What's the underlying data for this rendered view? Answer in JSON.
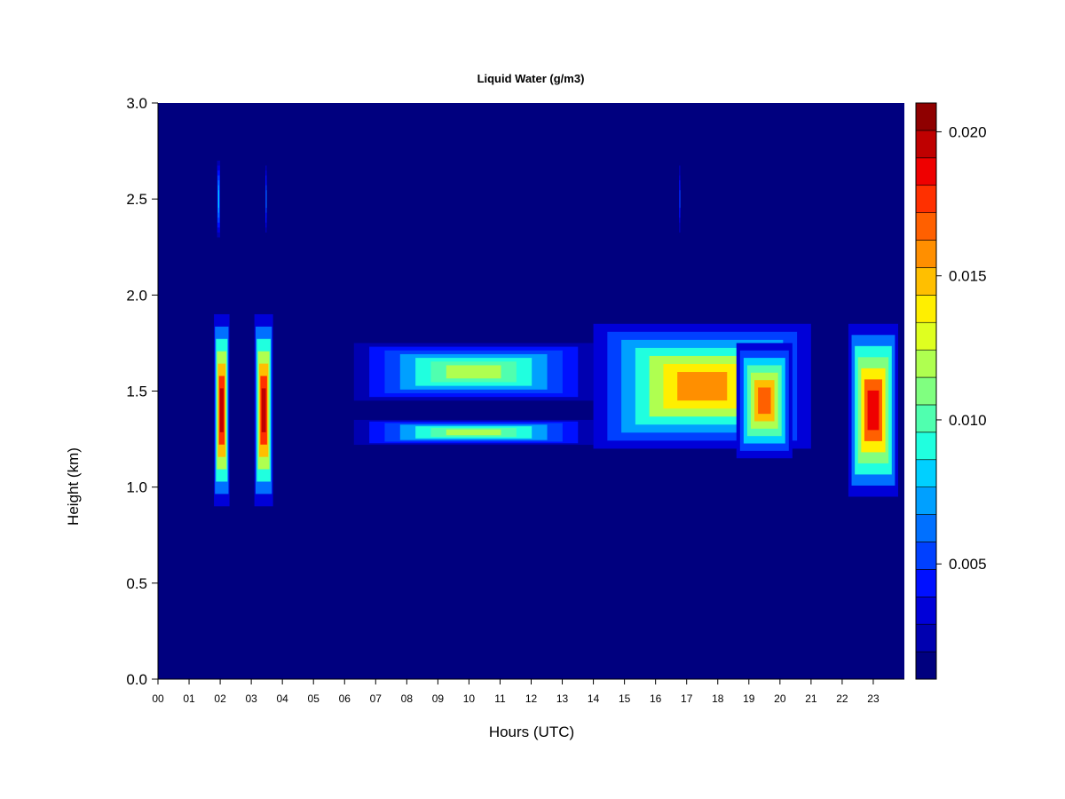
{
  "chart_data": {
    "type": "heatmap",
    "title": "Liquid Water (g/m3)",
    "xlabel": "Hours (UTC)",
    "ylabel": "Height (km)",
    "xlim": [
      0,
      24
    ],
    "ylim": [
      0.0,
      3.0
    ],
    "x_tick_labels": [
      "00",
      "01",
      "02",
      "03",
      "04",
      "05",
      "06",
      "07",
      "08",
      "09",
      "10",
      "11",
      "12",
      "13",
      "14",
      "15",
      "16",
      "17",
      "18",
      "19",
      "20",
      "21",
      "22",
      "23"
    ],
    "y_tick_labels": [
      "0.0",
      "0.5",
      "1.0",
      "1.5",
      "2.0",
      "2.5",
      "3.0"
    ],
    "y_tick_values": [
      0.0,
      0.5,
      1.0,
      1.5,
      2.0,
      2.5,
      3.0
    ],
    "colorbar": {
      "range": [
        0.001,
        0.021
      ],
      "tick_labels": [
        "0.005",
        "0.010",
        "0.015",
        "0.020"
      ],
      "tick_values": [
        0.005,
        0.01,
        0.015,
        0.02
      ],
      "colors": [
        "#00007F",
        "#0000B0",
        "#0000D8",
        "#0010FF",
        "#0040FF",
        "#0070FF",
        "#00A0FF",
        "#00D0FF",
        "#20FFDF",
        "#50FFAF",
        "#80FF80",
        "#AFFF50",
        "#DFFF20",
        "#FFEF00",
        "#FFBF00",
        "#FF8F00",
        "#FF6000",
        "#FF3000",
        "#EF0000",
        "#BF0000",
        "#8F0000"
      ]
    },
    "background_value": 0.001,
    "features": [
      {
        "name": "cloud 02h",
        "x": [
          1.8,
          2.3
        ],
        "y": [
          0.9,
          1.9
        ],
        "peak": 0.02
      },
      {
        "name": "cloud 03h",
        "x": [
          3.1,
          3.7
        ],
        "y": [
          0.9,
          1.9
        ],
        "peak": 0.02
      },
      {
        "name": "upper streak 02h",
        "x": [
          1.9,
          2.0
        ],
        "y": [
          2.3,
          2.7
        ],
        "peak": 0.008
      },
      {
        "name": "upper streak 03.5h",
        "x": [
          3.45,
          3.5
        ],
        "y": [
          2.3,
          2.7
        ],
        "peak": 0.006
      },
      {
        "name": "upper streak 16.8h",
        "x": [
          16.75,
          16.8
        ],
        "y": [
          2.3,
          2.7
        ],
        "peak": 0.005
      },
      {
        "name": "upper layer 06-14h",
        "x": [
          6.3,
          14.0
        ],
        "y": [
          1.45,
          1.75
        ],
        "peak": 0.012
      },
      {
        "name": "lower layer 06-14h",
        "x": [
          6.3,
          14.0
        ],
        "y": [
          1.22,
          1.35
        ],
        "peak": 0.012
      },
      {
        "name": "thick layer 14-21h",
        "x": [
          14.0,
          21.0
        ],
        "y": [
          1.2,
          1.85
        ],
        "peak": 0.016
      },
      {
        "name": "thick layer 19-20h",
        "x": [
          18.6,
          20.4
        ],
        "y": [
          1.15,
          1.75
        ],
        "peak": 0.017
      },
      {
        "name": "cloud 22-24h",
        "x": [
          22.2,
          23.8
        ],
        "y": [
          0.95,
          1.85
        ],
        "peak": 0.019
      }
    ]
  }
}
